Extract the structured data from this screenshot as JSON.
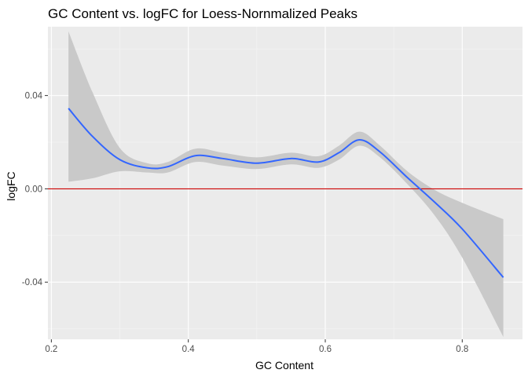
{
  "chart_data": {
    "type": "line",
    "title": "GC Content vs. logFC for Loess-Nornmalized Peaks",
    "xlabel": "GC Content",
    "ylabel": "logFC",
    "xlim": [
      0.195,
      0.888
    ],
    "ylim": [
      -0.0645,
      0.0695
    ],
    "x_ticks": [
      0.2,
      0.4,
      0.6,
      0.8
    ],
    "x_tick_labels": [
      "0.2",
      "0.4",
      "0.6",
      "0.8"
    ],
    "y_ticks": [
      -0.04,
      0.0,
      0.04
    ],
    "y_tick_labels": [
      "-0.04",
      "0.00",
      "0.04"
    ],
    "grid": true,
    "panel_background": "#ebebeb",
    "series": [
      {
        "color": "#3366ff",
        "ribbon_color": "#c9c9c9",
        "x": [
          0.225,
          0.26,
          0.3,
          0.34,
          0.37,
          0.41,
          0.45,
          0.5,
          0.55,
          0.59,
          0.62,
          0.65,
          0.68,
          0.72,
          0.76,
          0.8,
          0.86
        ],
        "y": [
          0.0345,
          0.0225,
          0.0125,
          0.009,
          0.0095,
          0.0142,
          0.013,
          0.011,
          0.013,
          0.0115,
          0.0155,
          0.021,
          0.0158,
          0.0048,
          -0.0058,
          -0.0172,
          -0.038
        ],
        "lower": [
          0.003,
          0.0045,
          0.0075,
          0.007,
          0.007,
          0.0115,
          0.01,
          0.0085,
          0.0105,
          0.009,
          0.0125,
          0.0185,
          0.0135,
          0.002,
          -0.0115,
          -0.0295,
          -0.0635
        ],
        "upper": [
          0.0675,
          0.0415,
          0.0175,
          0.011,
          0.0115,
          0.0172,
          0.0155,
          0.0135,
          0.0155,
          0.014,
          0.0185,
          0.0245,
          0.0185,
          0.0075,
          -0.0005,
          -0.006,
          -0.013
        ]
      }
    ],
    "reference_line": {
      "y": 0,
      "color": "#cc0000"
    }
  }
}
